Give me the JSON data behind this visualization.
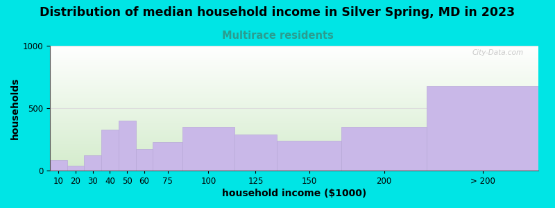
{
  "title": "Distribution of median household income in Silver Spring, MD in 2023",
  "subtitle": "Multirace residents",
  "xlabel": "household income ($1000)",
  "ylabel": "households",
  "categories": [
    "10",
    "20",
    "30",
    "40",
    "50",
    "60",
    "75",
    "100",
    "125",
    "150",
    "200",
    "> 200"
  ],
  "values": [
    85,
    40,
    120,
    330,
    400,
    170,
    230,
    350,
    290,
    240,
    350,
    680
  ],
  "bin_edges": [
    5,
    15,
    25,
    35,
    45,
    55,
    65,
    82.5,
    112.5,
    137.5,
    175,
    225,
    290
  ],
  "bar_color": "#c9b8e8",
  "bar_edgecolor": "#b8a8d8",
  "bg_outer": "#00e5e5",
  "bg_plot_top": "#ffffff",
  "bg_plot_bottom": "#d4eccc",
  "grid_color": "#dddddd",
  "title_fontsize": 12.5,
  "subtitle_fontsize": 10.5,
  "subtitle_color": "#2a9d8f",
  "axis_label_fontsize": 10,
  "tick_fontsize": 8.5,
  "ylim": [
    0,
    1000
  ],
  "yticks": [
    0,
    500,
    1000
  ],
  "watermark": "City-Data.com"
}
